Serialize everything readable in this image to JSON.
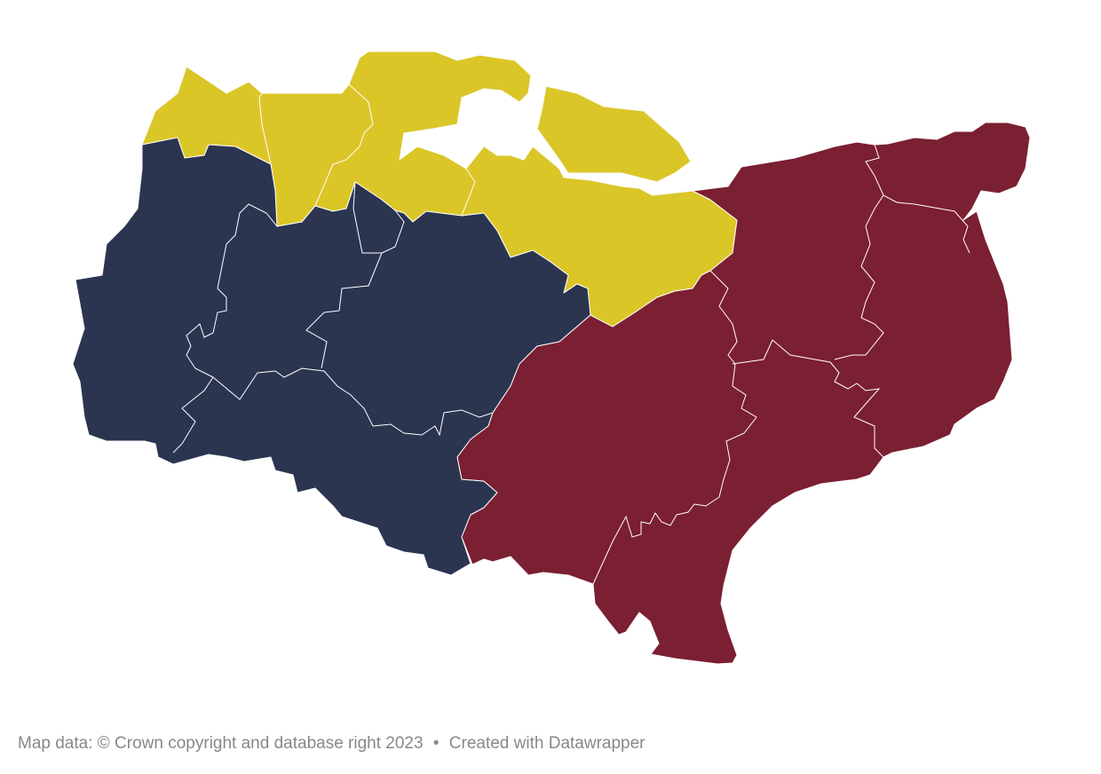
{
  "map": {
    "colors": {
      "group_a": "#2b3550",
      "group_b": "#dbc628",
      "group_c": "#7b1f32"
    }
  },
  "footer": {
    "source": "Map data: © Crown copyright and database right 2023",
    "separator": "•",
    "credit": "Created with Datawrapper"
  }
}
